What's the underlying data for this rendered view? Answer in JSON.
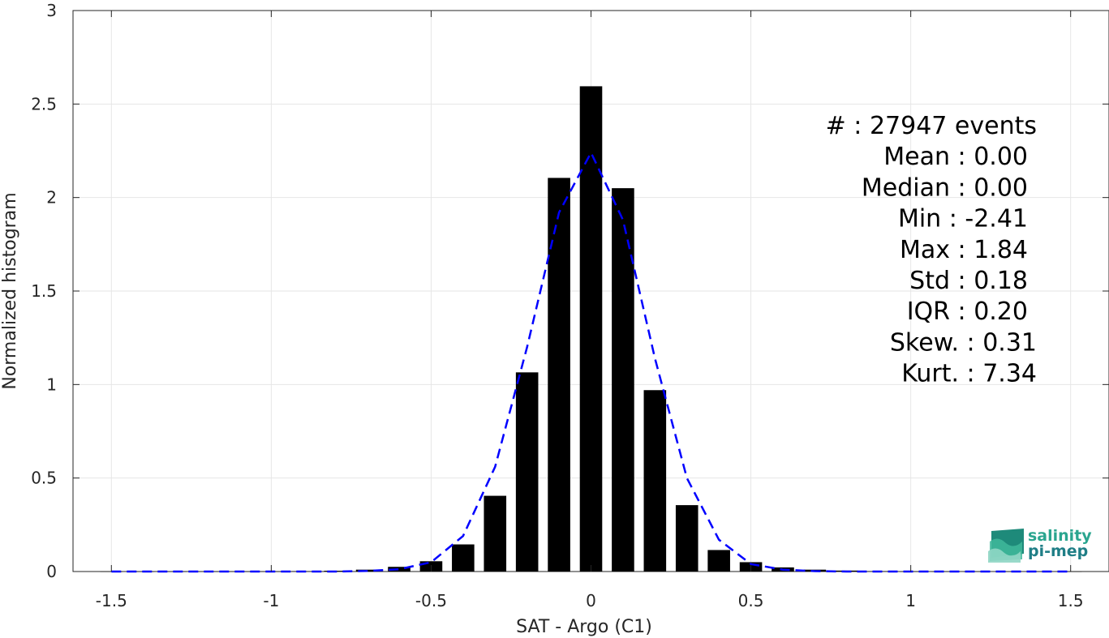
{
  "chart_data": {
    "type": "bar",
    "xlabel": "SAT - Argo (C1)",
    "ylabel": "Normalized histogram",
    "xlim": [
      -1.62,
      1.62
    ],
    "ylim": [
      0,
      3
    ],
    "xticks": [
      -1.5,
      -1,
      -0.5,
      0,
      0.5,
      1,
      1.5
    ],
    "xtick_labels": [
      "-1.5",
      "-1",
      "-0.5",
      "0",
      "0.5",
      "1",
      "1.5"
    ],
    "yticks": [
      0,
      0.5,
      1,
      1.5,
      2,
      2.5,
      3
    ],
    "ytick_labels": [
      "0",
      "0.5",
      "1",
      "1.5",
      "2",
      "2.5",
      "3"
    ],
    "grid": true,
    "bar_color": "#000000",
    "fit_color": "#0000ff",
    "bars": {
      "x": [
        -1.5,
        -1.4,
        -1.3,
        -1.2,
        -1.1,
        -1.0,
        -0.9,
        -0.8,
        -0.7,
        -0.6,
        -0.5,
        -0.4,
        -0.3,
        -0.2,
        -0.1,
        0.0,
        0.1,
        0.2,
        0.3,
        0.4,
        0.5,
        0.6,
        0.7,
        0.8,
        0.9,
        1.0,
        1.1,
        1.2,
        1.3,
        1.4,
        1.5
      ],
      "values": [
        0.0,
        0.0,
        0.0,
        0.0,
        0.0,
        0.0,
        0.002,
        0.004,
        0.01,
        0.025,
        0.055,
        0.145,
        0.405,
        1.065,
        2.105,
        2.595,
        2.05,
        0.97,
        0.355,
        0.115,
        0.05,
        0.022,
        0.01,
        0.005,
        0.002,
        0.0,
        0.0,
        0.0,
        0.0,
        0.0,
        0.0
      ],
      "width": 0.07
    },
    "fit_curve": {
      "style": "dashed",
      "x": [
        -1.5,
        -1.4,
        -1.3,
        -1.2,
        -1.1,
        -1.0,
        -0.9,
        -0.8,
        -0.7,
        -0.6,
        -0.5,
        -0.4,
        -0.3,
        -0.2,
        -0.1,
        0.0,
        0.1,
        0.2,
        0.3,
        0.4,
        0.5,
        0.6,
        0.7,
        0.8,
        0.9,
        1.0,
        1.1,
        1.2,
        1.3,
        1.4,
        1.5
      ],
      "y": [
        0.0,
        0.0,
        0.0,
        0.0,
        0.0,
        0.0,
        0.0,
        0.0,
        0.003,
        0.012,
        0.05,
        0.19,
        0.56,
        1.2,
        1.92,
        2.24,
        1.88,
        1.14,
        0.5,
        0.17,
        0.04,
        0.01,
        0.002,
        0.0,
        0.0,
        0.0,
        0.0,
        0.0,
        0.0,
        0.0,
        0.0
      ]
    },
    "annotations": [
      "#  : 27947 events",
      "Mean : 0.00",
      "Median : 0.00",
      "Min : -2.41",
      "Max : 1.84",
      "Std : 0.18",
      "IQR : 0.20",
      "Skew. : 0.31",
      "Kurt. : 7.34"
    ]
  },
  "logo": {
    "line1": "salinity",
    "line2": "pi-mep",
    "color1": "#2aa58f",
    "color2": "#1f7e86"
  }
}
